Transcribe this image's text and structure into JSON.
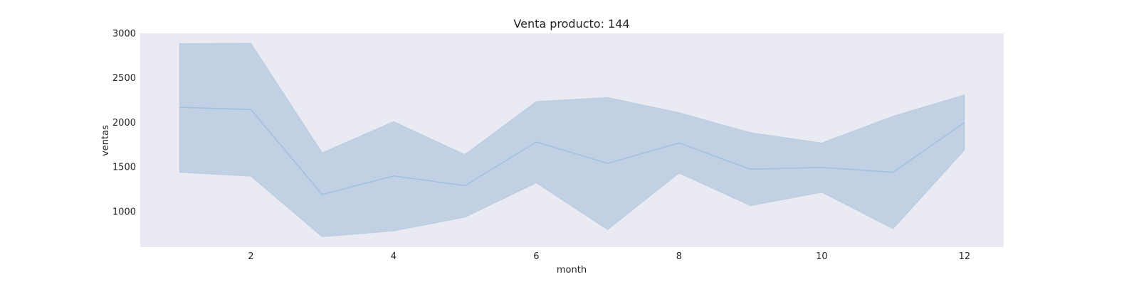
{
  "chart_data": {
    "type": "line",
    "title": "Venta producto: 144",
    "xlabel": "month",
    "ylabel": "ventas",
    "xlim": [
      0.45,
      12.55
    ],
    "ylim": [
      600,
      3000
    ],
    "xticks": [
      2,
      4,
      6,
      8,
      10,
      12
    ],
    "yticks": [
      1000,
      1500,
      2000,
      2500,
      3000
    ],
    "grid": false,
    "background_color": "#eaeaf2",
    "line_color": "#a3c0dc",
    "band_color": "#c1d1e3",
    "series": [
      {
        "x": [
          1,
          2,
          3,
          4,
          5,
          6,
          7,
          8,
          9,
          10,
          11,
          12
        ],
        "y": [
          2170,
          2145,
          1190,
          1400,
          1290,
          1780,
          1540,
          1770,
          1475,
          1495,
          1440,
          2000
        ],
        "ci_upper": [
          2885,
          2890,
          1660,
          2010,
          1640,
          2235,
          2280,
          2110,
          1885,
          1770,
          2070,
          2310
        ],
        "ci_lower": [
          1440,
          1395,
          715,
          780,
          935,
          1320,
          795,
          1430,
          1065,
          1215,
          805,
          1690
        ]
      }
    ]
  }
}
